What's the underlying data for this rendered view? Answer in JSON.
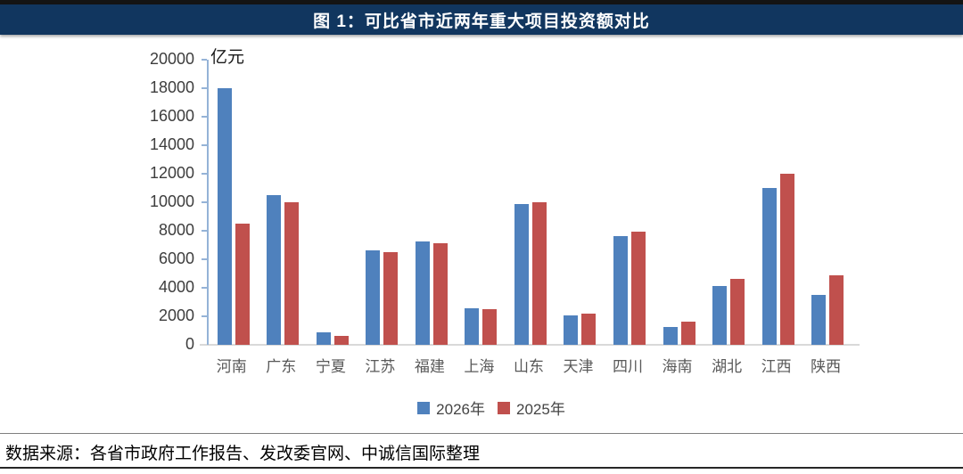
{
  "header": {
    "title": "图 1：可比省市近两年重大项目投资额对比",
    "background": "#11365F"
  },
  "chart_data": {
    "type": "bar",
    "title": "可比省市近两年重大项目投资额对比",
    "unit_label": "亿元",
    "xlabel": "",
    "ylabel": "亿元",
    "ylim": [
      0,
      20000
    ],
    "ytick_step": 2000,
    "grid": false,
    "legend_position": "bottom",
    "axis_color": "#95B3D7",
    "baseline_color": "#D9D9D9",
    "categories": [
      "河南",
      "广东",
      "宁夏",
      "江苏",
      "福建",
      "上海",
      "山东",
      "天津",
      "四川",
      "海南",
      "湖北",
      "江西",
      "陕西"
    ],
    "series": [
      {
        "name": "2026年",
        "color": "#4F81BD",
        "values": [
          18000,
          10500,
          900,
          6650,
          7250,
          2550,
          9850,
          2050,
          7600,
          1250,
          4100,
          11000,
          3500
        ]
      },
      {
        "name": "2025年",
        "color": "#C0504D",
        "values": [
          8500,
          10000,
          650,
          6500,
          7150,
          2500,
          10000,
          2200,
          7950,
          1650,
          4650,
          12000,
          4900
        ]
      }
    ]
  },
  "footer": {
    "source": "数据来源：各省市政府工作报告、发改委官网、中诚信国际整理"
  }
}
